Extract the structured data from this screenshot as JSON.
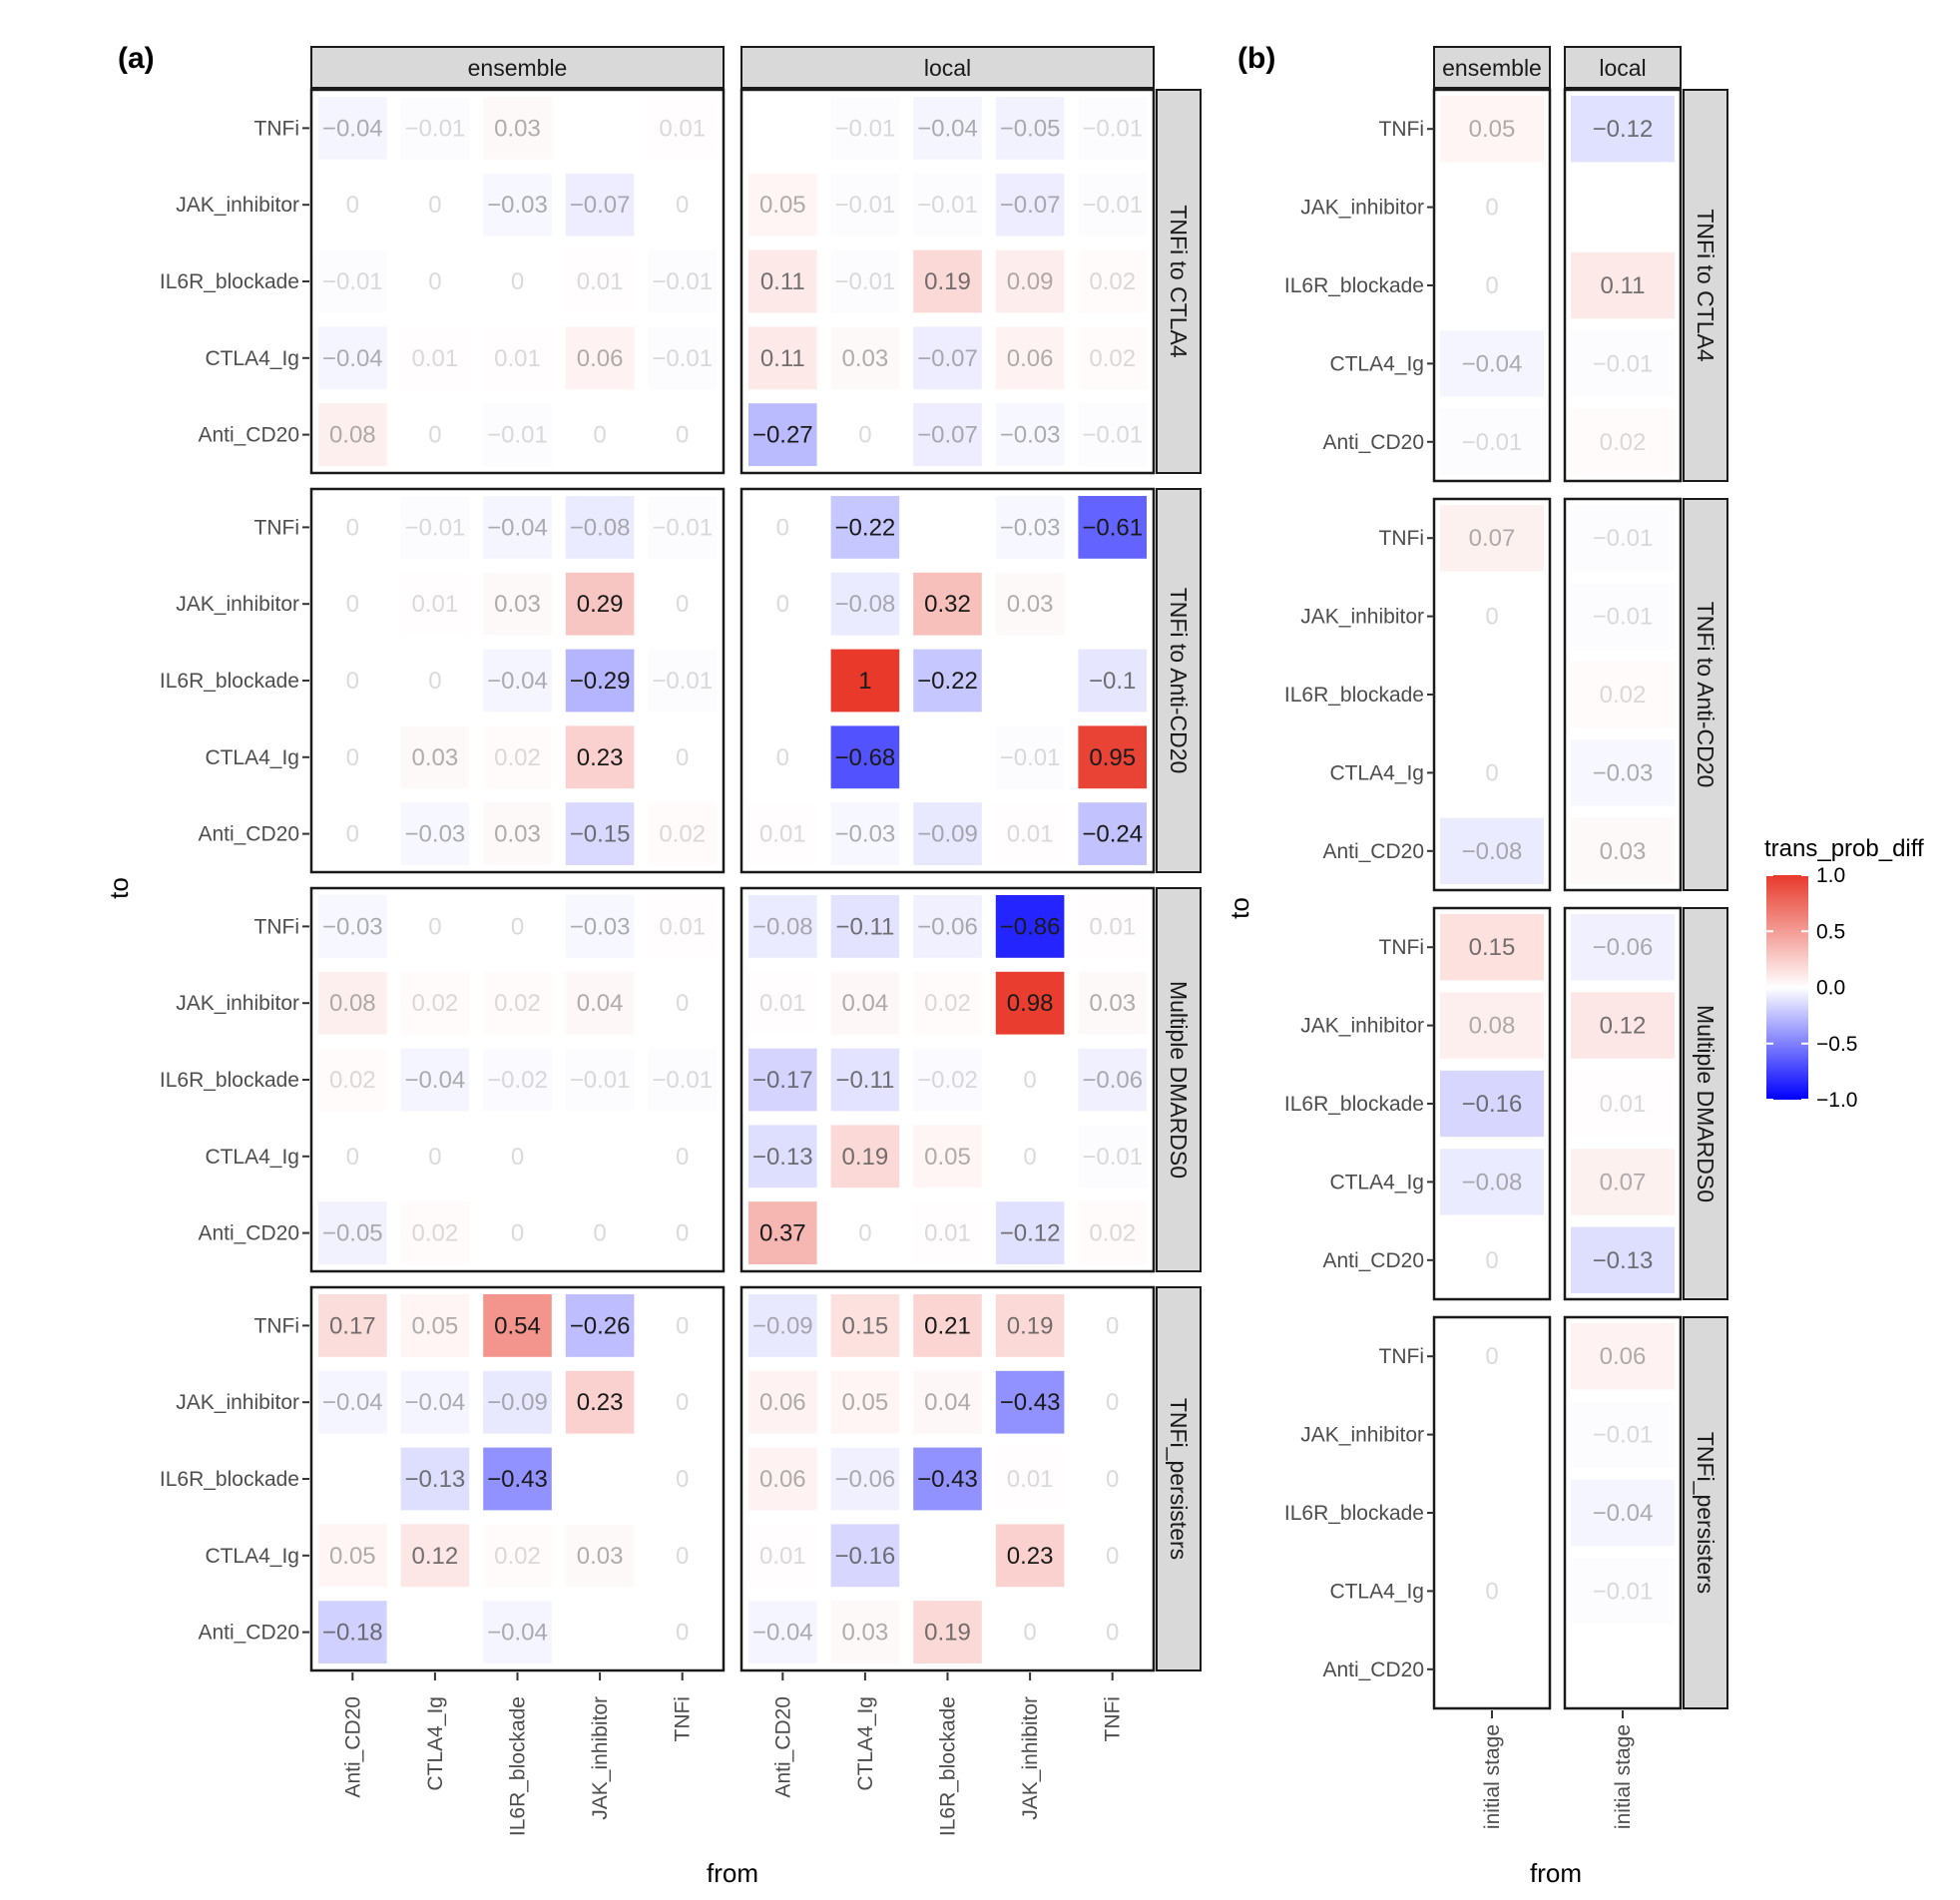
{
  "chart_data": [
    {
      "type": "heatmap",
      "panel_tag": "(a)",
      "xlabel": "from",
      "ylabel": "to",
      "x_categories": [
        "Anti_CD20",
        "CTLA4_Ig",
        "IL6R_blockade",
        "JAK_inhibitor",
        "TNFi"
      ],
      "y_categories": [
        "TNFi",
        "JAK_inhibitor",
        "IL6R_blockade",
        "CTLA4_Ig",
        "Anti_CD20"
      ],
      "columns": [
        "ensemble",
        "local"
      ],
      "rows": [
        "TNFi to CTLA4",
        "TNFi to Anti-CD20",
        "Multiple DMARDS0",
        "TNFi_persisters"
      ],
      "panels": [
        {
          "row": "TNFi to CTLA4",
          "col": "ensemble",
          "values": [
            [
              -0.04,
              -0.01,
              0.03,
              null,
              0.01
            ],
            [
              0,
              0,
              -0.03,
              -0.07,
              0
            ],
            [
              -0.01,
              0,
              0,
              0.01,
              -0.01
            ],
            [
              -0.04,
              0.01,
              0.01,
              0.06,
              -0.01
            ],
            [
              0.08,
              0,
              -0.01,
              0,
              0
            ]
          ]
        },
        {
          "row": "TNFi to CTLA4",
          "col": "local",
          "values": [
            [
              null,
              -0.01,
              -0.04,
              -0.05,
              -0.01
            ],
            [
              0.05,
              -0.01,
              -0.01,
              -0.07,
              -0.01
            ],
            [
              0.11,
              -0.01,
              0.19,
              0.09,
              0.02
            ],
            [
              0.11,
              0.03,
              -0.07,
              0.06,
              0.02
            ],
            [
              -0.27,
              0,
              -0.07,
              -0.03,
              -0.01
            ]
          ]
        },
        {
          "row": "TNFi to Anti-CD20",
          "col": "ensemble",
          "values": [
            [
              0,
              -0.01,
              -0.04,
              -0.08,
              -0.01
            ],
            [
              0,
              0.01,
              0.03,
              0.29,
              0
            ],
            [
              0,
              0,
              -0.04,
              -0.29,
              -0.01
            ],
            [
              0,
              0.03,
              0.02,
              0.23,
              0
            ],
            [
              0,
              -0.03,
              0.03,
              -0.15,
              0.02
            ]
          ]
        },
        {
          "row": "TNFi to Anti-CD20",
          "col": "local",
          "values": [
            [
              0,
              -0.22,
              null,
              -0.03,
              -0.61
            ],
            [
              0,
              -0.08,
              0.32,
              0.03,
              null
            ],
            [
              null,
              1,
              -0.22,
              null,
              -0.1
            ],
            [
              0,
              -0.68,
              null,
              -0.01,
              0.95
            ],
            [
              0.01,
              -0.03,
              -0.09,
              0.01,
              -0.24
            ]
          ]
        },
        {
          "row": "Multiple DMARDS0",
          "col": "ensemble",
          "values": [
            [
              -0.03,
              0,
              0,
              -0.03,
              0.01
            ],
            [
              0.08,
              0.02,
              0.02,
              0.04,
              0
            ],
            [
              0.02,
              -0.04,
              -0.02,
              -0.01,
              -0.01
            ],
            [
              0,
              0,
              0,
              null,
              0
            ],
            [
              -0.05,
              0.02,
              0,
              0,
              0
            ]
          ]
        },
        {
          "row": "Multiple DMARDS0",
          "col": "local",
          "values": [
            [
              -0.08,
              -0.11,
              -0.06,
              -0.86,
              0.01
            ],
            [
              0.01,
              0.04,
              0.02,
              0.98,
              0.03
            ],
            [
              -0.17,
              -0.11,
              -0.02,
              0,
              -0.06
            ],
            [
              -0.13,
              0.19,
              0.05,
              0,
              -0.01
            ],
            [
              0.37,
              0,
              0.01,
              -0.12,
              0.02
            ]
          ]
        },
        {
          "row": "TNFi_persisters",
          "col": "ensemble",
          "values": [
            [
              0.17,
              0.05,
              0.54,
              -0.26,
              0
            ],
            [
              -0.04,
              -0.04,
              -0.09,
              0.23,
              0
            ],
            [
              null,
              -0.13,
              -0.43,
              null,
              0
            ],
            [
              0.05,
              0.12,
              0.02,
              0.03,
              0
            ],
            [
              -0.18,
              null,
              -0.04,
              null,
              0
            ]
          ]
        },
        {
          "row": "TNFi_persisters",
          "col": "local",
          "values": [
            [
              -0.09,
              0.15,
              0.21,
              0.19,
              0
            ],
            [
              0.06,
              0.05,
              0.04,
              -0.43,
              0
            ],
            [
              0.06,
              -0.06,
              -0.43,
              0.01,
              0
            ],
            [
              0.01,
              -0.16,
              null,
              0.23,
              0
            ],
            [
              -0.04,
              0.03,
              0.19,
              0,
              0
            ]
          ]
        }
      ]
    },
    {
      "type": "heatmap",
      "panel_tag": "(b)",
      "xlabel": "from",
      "ylabel": "to",
      "x_categories": [
        "initial stage"
      ],
      "y_categories": [
        "TNFi",
        "JAK_inhibitor",
        "IL6R_blockade",
        "CTLA4_Ig",
        "Anti_CD20"
      ],
      "columns": [
        "ensemble",
        "local"
      ],
      "rows": [
        "TNFi to CTLA4",
        "TNFi to Anti-CD20",
        "Multiple DMARDS0",
        "TNFi_persisters"
      ],
      "panels": [
        {
          "row": "TNFi to CTLA4",
          "col": "ensemble",
          "values": [
            [
              0.05
            ],
            [
              0
            ],
            [
              0
            ],
            [
              -0.04
            ],
            [
              -0.01
            ]
          ]
        },
        {
          "row": "TNFi to CTLA4",
          "col": "local",
          "values": [
            [
              -0.12
            ],
            [
              null
            ],
            [
              0.11
            ],
            [
              -0.01
            ],
            [
              0.02
            ]
          ]
        },
        {
          "row": "TNFi to Anti-CD20",
          "col": "ensemble",
          "values": [
            [
              0.07
            ],
            [
              0
            ],
            [
              null
            ],
            [
              0
            ],
            [
              -0.08
            ]
          ]
        },
        {
          "row": "TNFi to Anti-CD20",
          "col": "local",
          "values": [
            [
              -0.01
            ],
            [
              -0.01
            ],
            [
              0.02
            ],
            [
              -0.03
            ],
            [
              0.03
            ]
          ]
        },
        {
          "row": "Multiple DMARDS0",
          "col": "ensemble",
          "values": [
            [
              0.15
            ],
            [
              0.08
            ],
            [
              -0.16
            ],
            [
              -0.08
            ],
            [
              0
            ]
          ]
        },
        {
          "row": "Multiple DMARDS0",
          "col": "local",
          "values": [
            [
              -0.06
            ],
            [
              0.12
            ],
            [
              0.01
            ],
            [
              0.07
            ],
            [
              -0.13
            ]
          ]
        },
        {
          "row": "TNFi_persisters",
          "col": "ensemble",
          "values": [
            [
              0
            ],
            [
              null
            ],
            [
              null
            ],
            [
              0
            ],
            [
              null
            ]
          ]
        },
        {
          "row": "TNFi_persisters",
          "col": "local",
          "values": [
            [
              0.06
            ],
            [
              -0.01
            ],
            [
              -0.04
            ],
            [
              -0.01
            ],
            [
              null
            ]
          ]
        }
      ]
    }
  ],
  "legend": {
    "title": "trans_prob_diff",
    "ticks": [
      "1.0",
      "0.5",
      "0.0",
      "−0.5",
      "−1.0"
    ],
    "tick_values": [
      1.0,
      0.5,
      0.0,
      -0.5,
      -1.0
    ],
    "low_color": "#0000FF",
    "mid_color": "#FFFFFF",
    "high_color": "#E8392B"
  }
}
